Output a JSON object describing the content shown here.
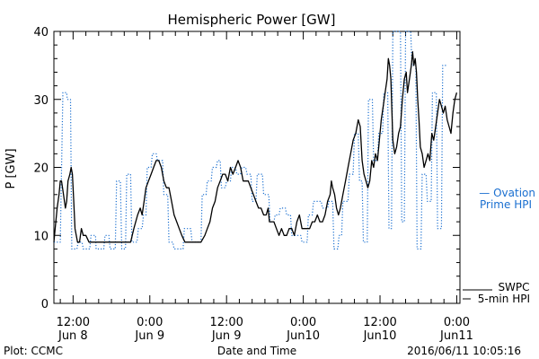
{
  "chart_data": {
    "type": "line",
    "title": "Hemispheric Power [GW]",
    "xlabel": "Date and Time",
    "ylabel": "P [GW]",
    "ylim": [
      0,
      40
    ],
    "xlim_hours": [
      -3,
      60.5
    ],
    "yticks": [
      0,
      10,
      20,
      30,
      40
    ],
    "xticks": [
      {
        "hour": 0,
        "line1": "12:00",
        "line2": "Jun 8"
      },
      {
        "hour": 12,
        "line1": "0:00",
        "line2": "Jun 9"
      },
      {
        "hour": 24,
        "line1": "12:00",
        "line2": "Jun 9"
      },
      {
        "hour": 36,
        "line1": "0:00",
        "line2": "Jun10"
      },
      {
        "hour": 48,
        "line1": "12:00",
        "line2": "Jun10"
      },
      {
        "hour": 60,
        "line1": "0:00",
        "line2": "Jun11"
      }
    ],
    "series": [
      {
        "name": "Ovation Prime HPI",
        "style": "dotted",
        "color": "#1a6fd0",
        "points": [
          [
            -3,
            9
          ],
          [
            -2,
            9
          ],
          [
            -1.6,
            31
          ],
          [
            -1,
            31
          ],
          [
            -0.9,
            30
          ],
          [
            -0.4,
            30
          ],
          [
            -0.2,
            8
          ],
          [
            0.6,
            8
          ],
          [
            0.8,
            9
          ],
          [
            1.4,
            9
          ],
          [
            1.6,
            8
          ],
          [
            2.6,
            8
          ],
          [
            2.8,
            10
          ],
          [
            3.5,
            10
          ],
          [
            3.6,
            8
          ],
          [
            4.8,
            8
          ],
          [
            5,
            10
          ],
          [
            5.6,
            10
          ],
          [
            5.8,
            8
          ],
          [
            6.6,
            8
          ],
          [
            6.8,
            18
          ],
          [
            7.4,
            18
          ],
          [
            7.6,
            8
          ],
          [
            8.2,
            8
          ],
          [
            8.4,
            19
          ],
          [
            9,
            19
          ],
          [
            9.2,
            9
          ],
          [
            10,
            9
          ],
          [
            10.2,
            11
          ],
          [
            10.8,
            11
          ],
          [
            11,
            13
          ],
          [
            11.4,
            13
          ],
          [
            11.6,
            20
          ],
          [
            12.2,
            20
          ],
          [
            12.4,
            22
          ],
          [
            13,
            22
          ],
          [
            13.2,
            21
          ],
          [
            14,
            21
          ],
          [
            14.2,
            16
          ],
          [
            14.8,
            16
          ],
          [
            15,
            9
          ],
          [
            15.6,
            9
          ],
          [
            15.8,
            8
          ],
          [
            17.2,
            8
          ],
          [
            17.4,
            11
          ],
          [
            18.4,
            11
          ],
          [
            18.6,
            9
          ],
          [
            20,
            9
          ],
          [
            20.2,
            16
          ],
          [
            20.8,
            16
          ],
          [
            21,
            18
          ],
          [
            21.6,
            18
          ],
          [
            21.8,
            20
          ],
          [
            22.4,
            20
          ],
          [
            22.6,
            21
          ],
          [
            23,
            21
          ],
          [
            23.2,
            17
          ],
          [
            23.8,
            17
          ],
          [
            24,
            18
          ],
          [
            24.6,
            18
          ],
          [
            24.8,
            20
          ],
          [
            25.4,
            20
          ],
          [
            25.6,
            19
          ],
          [
            26.2,
            19
          ],
          [
            26.4,
            20
          ],
          [
            27,
            20
          ],
          [
            27.2,
            19
          ],
          [
            27.8,
            19
          ],
          [
            28,
            15
          ],
          [
            28.6,
            15
          ],
          [
            28.8,
            19
          ],
          [
            29.6,
            19
          ],
          [
            29.8,
            16
          ],
          [
            30.6,
            16
          ],
          [
            30.8,
            12
          ],
          [
            31.4,
            12
          ],
          [
            31.6,
            13
          ],
          [
            32.2,
            13
          ],
          [
            32.4,
            14
          ],
          [
            33.2,
            14
          ],
          [
            33.4,
            13
          ],
          [
            34,
            13
          ],
          [
            34.2,
            10
          ],
          [
            35.6,
            10
          ],
          [
            35.8,
            9
          ],
          [
            36.6,
            9
          ],
          [
            36.8,
            13
          ],
          [
            37.4,
            13
          ],
          [
            37.6,
            15
          ],
          [
            38.8,
            15
          ],
          [
            39,
            14
          ],
          [
            39.8,
            14
          ],
          [
            40,
            15
          ],
          [
            40.6,
            15
          ],
          [
            40.8,
            8
          ],
          [
            41.4,
            8
          ],
          [
            41.6,
            10
          ],
          [
            42,
            10
          ],
          [
            42.2,
            15
          ],
          [
            43,
            15
          ],
          [
            43.2,
            19
          ],
          [
            43.8,
            19
          ],
          [
            44,
            25
          ],
          [
            44.6,
            25
          ],
          [
            44.8,
            18
          ],
          [
            45.2,
            18
          ],
          [
            45.4,
            9
          ],
          [
            46,
            9
          ],
          [
            46.2,
            30
          ],
          [
            46.8,
            30
          ],
          [
            47,
            21
          ],
          [
            47.6,
            21
          ],
          [
            47.8,
            25
          ],
          [
            48.4,
            25
          ],
          [
            48.6,
            31
          ],
          [
            49.2,
            31
          ],
          [
            49.4,
            11
          ],
          [
            49.8,
            11
          ],
          [
            50,
            40
          ],
          [
            51.2,
            40
          ],
          [
            51.4,
            12
          ],
          [
            51.8,
            12
          ],
          [
            52,
            40
          ],
          [
            52.8,
            40
          ],
          [
            53,
            35
          ],
          [
            53.6,
            35
          ],
          [
            53.8,
            8
          ],
          [
            54.4,
            8
          ],
          [
            54.6,
            19
          ],
          [
            55.2,
            19
          ],
          [
            55.4,
            15
          ],
          [
            56,
            15
          ],
          [
            56.2,
            31
          ],
          [
            56.8,
            31
          ],
          [
            57,
            11
          ],
          [
            57.6,
            11
          ],
          [
            57.8,
            35
          ],
          [
            58.4,
            35
          ]
        ]
      },
      {
        "name": "SWPC 5-min HPI",
        "style": "solid",
        "color": "#000000",
        "points": [
          [
            -3,
            9
          ],
          [
            -2.8,
            11
          ],
          [
            -2.5,
            14
          ],
          [
            -2.2,
            16
          ],
          [
            -2,
            18
          ],
          [
            -1.8,
            18
          ],
          [
            -1.5,
            16
          ],
          [
            -1.2,
            14
          ],
          [
            -1,
            15
          ],
          [
            -0.8,
            18
          ],
          [
            -0.5,
            19
          ],
          [
            -0.3,
            20
          ],
          [
            -0.1,
            19
          ],
          [
            0.1,
            15
          ],
          [
            0.3,
            11
          ],
          [
            0.5,
            10
          ],
          [
            0.7,
            9
          ],
          [
            1,
            9
          ],
          [
            1.3,
            11
          ],
          [
            1.6,
            10
          ],
          [
            2,
            10
          ],
          [
            2.5,
            9
          ],
          [
            3,
            9
          ],
          [
            4,
            9
          ],
          [
            5,
            9
          ],
          [
            6,
            9
          ],
          [
            7,
            9
          ],
          [
            8,
            9
          ],
          [
            9,
            9
          ],
          [
            9.5,
            11
          ],
          [
            9.8,
            12
          ],
          [
            10.1,
            13
          ],
          [
            10.5,
            14
          ],
          [
            10.8,
            13
          ],
          [
            11.1,
            15
          ],
          [
            11.4,
            17
          ],
          [
            11.8,
            18
          ],
          [
            12.2,
            19
          ],
          [
            12.6,
            20
          ],
          [
            13,
            21
          ],
          [
            13.4,
            21
          ],
          [
            13.8,
            20
          ],
          [
            14.2,
            18
          ],
          [
            14.6,
            17
          ],
          [
            15,
            17
          ],
          [
            15.4,
            15
          ],
          [
            15.8,
            13
          ],
          [
            16.2,
            12
          ],
          [
            16.6,
            11
          ],
          [
            17,
            10
          ],
          [
            17.5,
            9
          ],
          [
            18,
            9
          ],
          [
            19,
            9
          ],
          [
            20,
            9
          ],
          [
            20.6,
            10
          ],
          [
            21,
            11
          ],
          [
            21.4,
            12
          ],
          [
            21.8,
            14
          ],
          [
            22.2,
            15
          ],
          [
            22.6,
            17
          ],
          [
            23,
            18
          ],
          [
            23.4,
            19
          ],
          [
            23.8,
            19
          ],
          [
            24.2,
            18
          ],
          [
            24.6,
            20
          ],
          [
            25,
            19
          ],
          [
            25.4,
            20
          ],
          [
            25.8,
            21
          ],
          [
            26.2,
            20
          ],
          [
            26.6,
            18
          ],
          [
            27,
            18
          ],
          [
            27.4,
            18
          ],
          [
            27.8,
            17
          ],
          [
            28.2,
            16
          ],
          [
            28.6,
            15
          ],
          [
            29,
            14
          ],
          [
            29.4,
            14
          ],
          [
            29.8,
            13
          ],
          [
            30.2,
            13
          ],
          [
            30.5,
            14
          ],
          [
            30.7,
            12
          ],
          [
            31,
            12
          ],
          [
            31.4,
            12
          ],
          [
            31.8,
            11
          ],
          [
            32.2,
            10
          ],
          [
            32.6,
            11
          ],
          [
            33,
            10
          ],
          [
            33.4,
            10
          ],
          [
            33.8,
            11
          ],
          [
            34.2,
            11
          ],
          [
            34.6,
            10
          ],
          [
            35,
            12
          ],
          [
            35.4,
            13
          ],
          [
            35.8,
            11
          ],
          [
            36.2,
            11
          ],
          [
            36.6,
            11
          ],
          [
            37,
            11
          ],
          [
            37.4,
            12
          ],
          [
            37.8,
            12
          ],
          [
            38.2,
            13
          ],
          [
            38.6,
            12
          ],
          [
            39,
            12
          ],
          [
            39.4,
            13
          ],
          [
            39.8,
            15
          ],
          [
            40.2,
            16
          ],
          [
            40.4,
            18
          ],
          [
            40.6,
            17
          ],
          [
            40.9,
            16
          ],
          [
            41.2,
            14
          ],
          [
            41.5,
            13
          ],
          [
            41.8,
            14
          ],
          [
            42.2,
            16
          ],
          [
            42.6,
            18
          ],
          [
            43,
            20
          ],
          [
            43.4,
            22
          ],
          [
            43.8,
            24
          ],
          [
            44.2,
            25
          ],
          [
            44.6,
            27
          ],
          [
            44.9,
            26
          ],
          [
            45.2,
            21
          ],
          [
            45.5,
            19
          ],
          [
            45.8,
            18
          ],
          [
            46.1,
            17
          ],
          [
            46.4,
            18
          ],
          [
            46.7,
            21
          ],
          [
            47,
            20
          ],
          [
            47.3,
            22
          ],
          [
            47.6,
            21
          ],
          [
            47.9,
            24
          ],
          [
            48.2,
            27
          ],
          [
            48.5,
            29
          ],
          [
            48.8,
            31
          ],
          [
            49.1,
            33
          ],
          [
            49.3,
            36
          ],
          [
            49.5,
            35
          ],
          [
            49.7,
            33
          ],
          [
            50,
            24
          ],
          [
            50.3,
            22
          ],
          [
            50.6,
            23
          ],
          [
            50.9,
            25
          ],
          [
            51.2,
            26
          ],
          [
            51.5,
            30
          ],
          [
            51.8,
            33
          ],
          [
            52.1,
            34
          ],
          [
            52.3,
            31
          ],
          [
            52.6,
            33
          ],
          [
            52.9,
            35
          ],
          [
            53.1,
            37
          ],
          [
            53.3,
            35
          ],
          [
            53.5,
            36
          ],
          [
            53.7,
            34
          ],
          [
            53.9,
            30
          ],
          [
            54.1,
            27
          ],
          [
            54.3,
            23
          ],
          [
            54.6,
            22
          ],
          [
            54.9,
            20
          ],
          [
            55.2,
            21
          ],
          [
            55.5,
            22
          ],
          [
            55.8,
            21
          ],
          [
            56.1,
            25
          ],
          [
            56.4,
            24
          ],
          [
            56.7,
            26
          ],
          [
            57,
            28
          ],
          [
            57.3,
            30
          ],
          [
            57.6,
            29
          ],
          [
            57.9,
            28
          ],
          [
            58.2,
            29
          ],
          [
            58.5,
            27
          ],
          [
            58.8,
            26
          ],
          [
            59.1,
            25
          ],
          [
            59.4,
            28
          ],
          [
            59.7,
            30
          ],
          [
            60,
            31
          ]
        ]
      }
    ],
    "legend": [
      {
        "line1": "— Ovation",
        "line2": "Prime HPI"
      },
      {
        "line1": "SWPC",
        "line2": "5-min HPI"
      }
    ],
    "footer": {
      "left": "Plot: CCMC",
      "right": "2016/06/11 10:05:16"
    }
  }
}
